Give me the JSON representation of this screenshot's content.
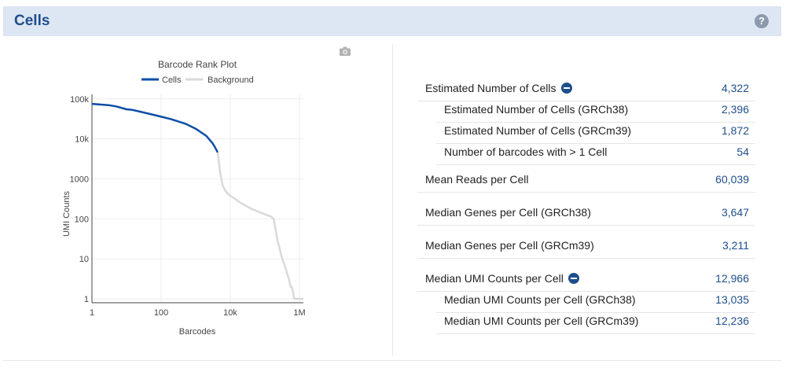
{
  "header": {
    "title": "Cells",
    "help_glyph": "?"
  },
  "icons": {
    "help": "help-circle-icon",
    "camera": "camera-icon",
    "collapse": "minus-circle-icon"
  },
  "colors": {
    "cells": "#0d4ea6",
    "background": "#d9d9d9",
    "accent": "#1f4e8c",
    "header_bg": "#dde6f3"
  },
  "chart_data": {
    "type": "line",
    "title": "Barcode Rank Plot",
    "xlabel": "Barcodes",
    "ylabel": "UMI Counts",
    "xscale": "log",
    "yscale": "log",
    "xlim": [
      1,
      1300000
    ],
    "ylim": [
      0.8,
      130000
    ],
    "xticks": [
      {
        "v": 1,
        "label": "1"
      },
      {
        "v": 100,
        "label": "100"
      },
      {
        "v": 10000,
        "label": "10k"
      },
      {
        "v": 1000000,
        "label": "1M"
      }
    ],
    "yticks": [
      {
        "v": 1,
        "label": "1"
      },
      {
        "v": 10,
        "label": "10"
      },
      {
        "v": 100,
        "label": "100"
      },
      {
        "v": 1000,
        "label": "1000"
      },
      {
        "v": 10000,
        "label": "10k"
      },
      {
        "v": 100000,
        "label": "100k"
      }
    ],
    "grid": true,
    "legend": "top",
    "series": [
      {
        "name": "Cells",
        "x": [
          1,
          3,
          5,
          10,
          15,
          30,
          60,
          100,
          200,
          500,
          1000,
          2000,
          3000,
          3500,
          4322
        ],
        "y": [
          75000,
          70000,
          65000,
          55000,
          53000,
          46000,
          40000,
          36000,
          31000,
          24000,
          18000,
          12000,
          8000,
          6500,
          4600
        ]
      },
      {
        "name": "Background",
        "x": [
          4322,
          4600,
          5000,
          5500,
          6000,
          7000,
          8000,
          10000,
          15000,
          20000,
          40000,
          80000,
          150000,
          180000,
          200000,
          230000,
          260000,
          300000,
          350000,
          420000,
          500000,
          550000,
          600000,
          650000,
          700000,
          1000000,
          1300000
        ],
        "y": [
          4600,
          3000,
          1600,
          1000,
          700,
          520,
          450,
          380,
          300,
          250,
          180,
          140,
          115,
          100,
          60,
          30,
          20,
          12,
          8,
          5,
          3,
          2,
          2,
          1.5,
          1,
          1,
          1
        ]
      }
    ]
  },
  "metrics": [
    {
      "label": "Estimated Number of Cells",
      "value": "4,322",
      "kind": "main",
      "collapsible": true
    },
    {
      "label": "Estimated Number of Cells (GRCh38)",
      "value": "2,396",
      "kind": "sub"
    },
    {
      "label": "Estimated Number of Cells (GRCm39)",
      "value": "1,872",
      "kind": "sub"
    },
    {
      "label": "Number of barcodes with > 1 Cell",
      "value": "54",
      "kind": "sub"
    },
    {
      "label": "Mean Reads per Cell",
      "value": "60,039",
      "kind": "main"
    },
    {
      "label": "Median Genes per Cell (GRCh38)",
      "value": "3,647",
      "kind": "tall"
    },
    {
      "label": "Median Genes per Cell (GRCm39)",
      "value": "3,211",
      "kind": "tall"
    },
    {
      "label": "Median UMI Counts per Cell",
      "value": "12,966",
      "kind": "tall",
      "collapsible": true
    },
    {
      "label": "Median UMI Counts per Cell (GRCh38)",
      "value": "13,035",
      "kind": "sub"
    },
    {
      "label": "Median UMI Counts per Cell (GRCm39)",
      "value": "12,236",
      "kind": "sub"
    }
  ]
}
